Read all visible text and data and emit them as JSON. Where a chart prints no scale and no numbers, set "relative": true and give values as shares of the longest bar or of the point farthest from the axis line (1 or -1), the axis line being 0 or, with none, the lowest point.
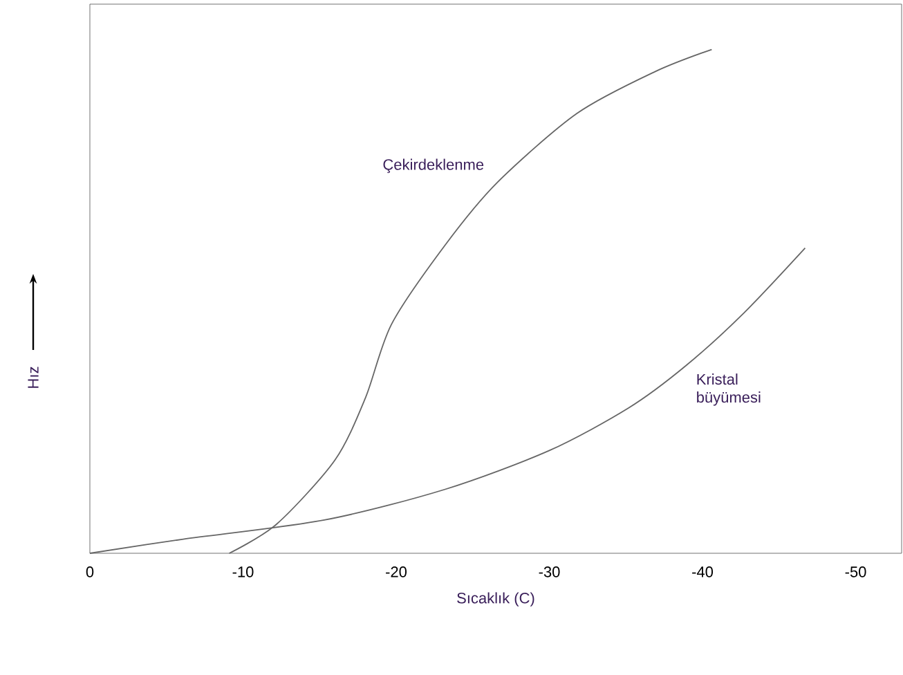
{
  "chart_data": {
    "type": "line",
    "xlabel": "Sıcaklık (C)",
    "ylabel": "Hız",
    "relative": true,
    "xlim": [
      0,
      -53
    ],
    "xticks": [
      0,
      -10,
      -20,
      -30,
      -40,
      -50
    ],
    "grid": false,
    "marker": "none",
    "line_style": "solid",
    "series": [
      {
        "name": "Çekirdeklenme",
        "color": "#666666",
        "x": [
          -9.1,
          -12.2,
          -16.0,
          -18.0,
          -19.7,
          -23.2,
          -26.6,
          -31.8,
          -36.9,
          -40.6
        ],
        "values": [
          0,
          0.058,
          0.185,
          0.309,
          0.455,
          0.612,
          0.736,
          0.873,
          0.956,
          1.0
        ]
      },
      {
        "name": "Kristal büyümesi",
        "color": "#666666",
        "x": [
          0,
          -6.1,
          -15.3,
          -23.2,
          -30.0,
          -35.2,
          -38.9,
          -42.7,
          -46.7
        ],
        "values": [
          0,
          0.028,
          0.066,
          0.127,
          0.204,
          0.289,
          0.372,
          0.477,
          0.606
        ]
      }
    ]
  }
}
